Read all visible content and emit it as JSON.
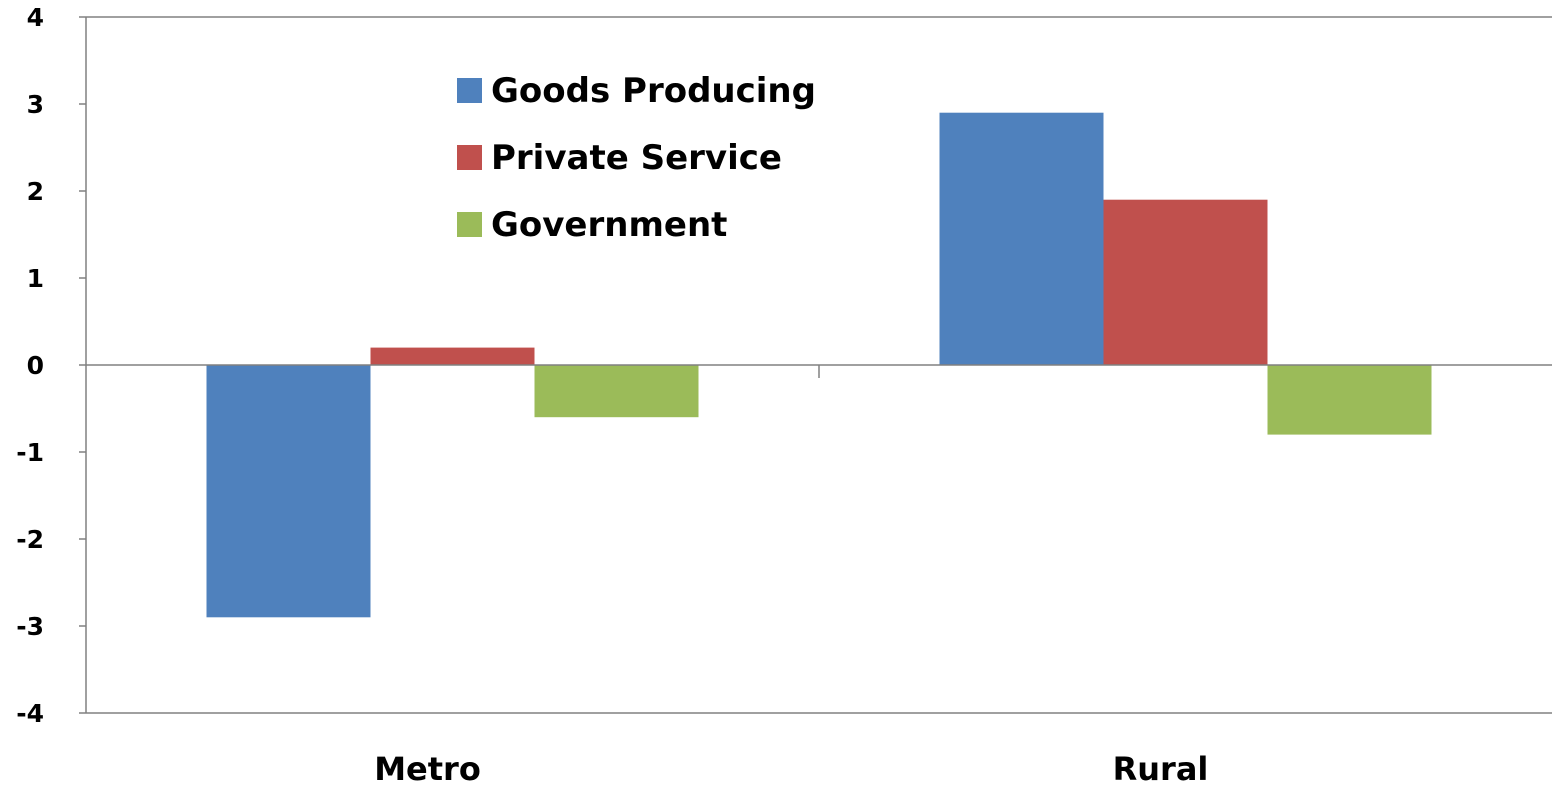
{
  "chart_data": {
    "type": "bar",
    "title": "",
    "xlabel": "",
    "ylabel": "",
    "categories": [
      "Metro",
      "Rural"
    ],
    "series": [
      {
        "name": "Goods Producing",
        "color": "#4F81BD",
        "values": [
          -2.9,
          2.9
        ]
      },
      {
        "name": "Private Service",
        "color": "#C0504D",
        "values": [
          0.2,
          1.9
        ]
      },
      {
        "name": "Government",
        "color": "#9BBB59",
        "values": [
          -0.6,
          -0.8
        ]
      }
    ],
    "ylim": [
      -4,
      4
    ],
    "yticks": [
      "4",
      "3",
      "2",
      "1",
      "0",
      "-1",
      "-2",
      "-3",
      "-4"
    ],
    "grid": false,
    "legend_position": "top-center"
  }
}
